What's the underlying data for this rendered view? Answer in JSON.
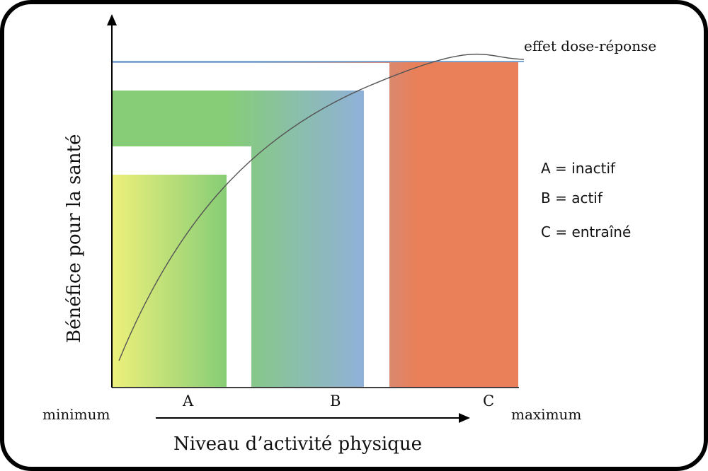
{
  "diagram": {
    "y_axis_title": "Bénéfice pour la santé",
    "x_axis_title": "Niveau d’activité physique",
    "x_min_label": "minimum",
    "x_max_label": "maximum",
    "curve_label": "effet dose-réponse",
    "levels": [
      {
        "key": "A",
        "label": "A"
      },
      {
        "key": "B",
        "label": "B"
      },
      {
        "key": "C",
        "label": "C"
      }
    ],
    "legend": [
      "A = inactif",
      "B = actif",
      "C = entraîné"
    ],
    "colors": {
      "yellow": "#eef07a",
      "green": "#86cd76",
      "blue": "#8fb1da",
      "orange": "#e98059",
      "curve": "#555555",
      "axis": "#000000"
    }
  }
}
